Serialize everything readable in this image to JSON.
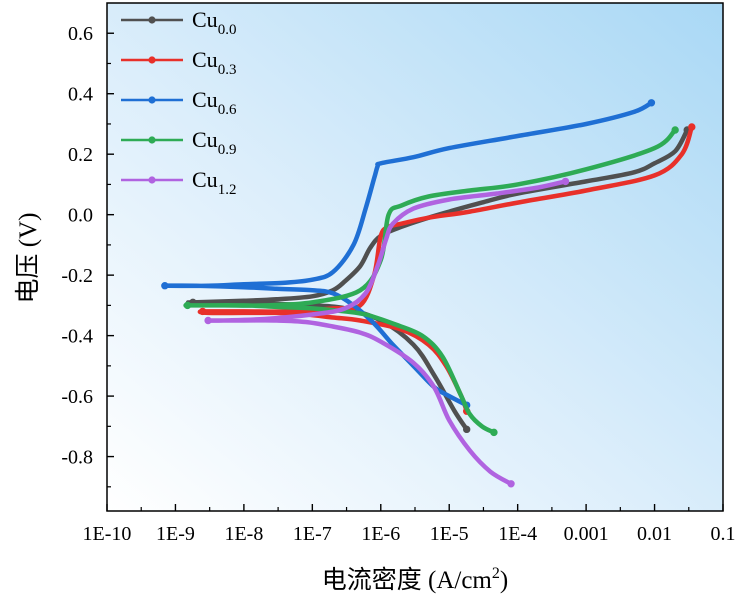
{
  "chart_data": {
    "type": "line",
    "title": "",
    "xlabel": "电流密度 (A/cm²)",
    "xlabel_main": "电流密度 (A/cm",
    "xlabel_sup": "2",
    "xlabel_close": ")",
    "ylabel": "电压 (V)",
    "x_scale": "log",
    "xlim": [
      1e-10,
      0.1
    ],
    "ylim": [
      -0.98,
      0.7
    ],
    "x_ticks": [
      1e-10,
      1e-09,
      1e-08,
      1e-07,
      1e-06,
      1e-05,
      0.0001,
      0.001,
      0.01,
      0.1
    ],
    "x_tick_labels": [
      "1E-10",
      "1E-9",
      "1E-8",
      "1E-7",
      "1E-6",
      "1E-5",
      "1E-4",
      "0.001",
      "0.01",
      "0.1"
    ],
    "y_ticks": [
      -0.8,
      -0.6,
      -0.4,
      -0.2,
      0.0,
      0.2,
      0.4,
      0.6
    ],
    "y_tick_labels": [
      "-0.8",
      "-0.6",
      "-0.4",
      "-0.2",
      "0.0",
      "0.2",
      "0.4",
      "0.6"
    ],
    "background": "gradient light-blue",
    "grid": false,
    "legend_position": "top-left",
    "series": [
      {
        "name": "Cu0.0",
        "base": "Cu",
        "sub": "0.0",
        "color": "#505050",
        "x": [
          1.8e-05,
          1.2e-05,
          6e-06,
          3e-06,
          1e-06,
          3e-07,
          1e-07,
          3e-08,
          1e-08,
          2e-09,
          1.8e-09,
          1e-08,
          3e-08,
          1e-07,
          2e-07,
          3e-07,
          5e-07,
          7e-07,
          1e-06,
          2e-06,
          5e-06,
          1e-05,
          3e-05,
          0.0001,
          0.001,
          0.005,
          0.01,
          0.02,
          0.03
        ],
        "y": [
          -0.71,
          -0.65,
          -0.53,
          -0.43,
          -0.35,
          -0.31,
          -0.3,
          -0.295,
          -0.29,
          -0.29,
          -0.29,
          -0.285,
          -0.28,
          -0.27,
          -0.25,
          -0.22,
          -0.17,
          -0.11,
          -0.07,
          -0.04,
          -0.01,
          0.01,
          0.04,
          0.07,
          0.11,
          0.14,
          0.17,
          0.21,
          0.28
        ]
      },
      {
        "name": "Cu0.3",
        "base": "Cu",
        "sub": "0.3",
        "color": "#e8302a",
        "x": [
          1.8e-05,
          1.5e-05,
          9e-06,
          5e-06,
          2e-06,
          5e-07,
          2e-07,
          8e-08,
          3e-08,
          1e-08,
          3e-09,
          2.5e-09,
          1e-08,
          5e-08,
          2e-07,
          5e-07,
          8e-07,
          1e-06,
          1.3e-06,
          2e-06,
          5e-06,
          2e-05,
          0.0001,
          0.001,
          0.01,
          0.025,
          0.035
        ],
        "y": [
          -0.65,
          -0.6,
          -0.5,
          -0.43,
          -0.38,
          -0.35,
          -0.34,
          -0.33,
          -0.325,
          -0.325,
          -0.325,
          -0.32,
          -0.32,
          -0.32,
          -0.31,
          -0.3,
          -0.2,
          -0.07,
          -0.04,
          -0.03,
          -0.01,
          0.01,
          0.04,
          0.08,
          0.13,
          0.2,
          0.29
        ]
      },
      {
        "name": "Cu0.6",
        "base": "Cu",
        "sub": "0.6",
        "color": "#1f6fd4",
        "x": [
          1.8e-05,
          1e-05,
          6e-06,
          3e-06,
          1.5e-06,
          8e-07,
          4e-07,
          2e-07,
          1e-07,
          3e-08,
          1e-08,
          2e-09,
          7e-10,
          3e-09,
          1e-08,
          4e-08,
          1e-07,
          2e-07,
          4e-07,
          6e-07,
          8e-07,
          9e-07,
          1e-06,
          3e-06,
          1e-05,
          0.0001,
          0.001,
          0.005,
          0.009
        ],
        "y": [
          -0.63,
          -0.6,
          -0.57,
          -0.5,
          -0.43,
          -0.36,
          -0.3,
          -0.26,
          -0.25,
          -0.245,
          -0.24,
          -0.235,
          -0.235,
          -0.235,
          -0.23,
          -0.225,
          -0.215,
          -0.19,
          -0.1,
          0.02,
          0.12,
          0.16,
          0.17,
          0.19,
          0.22,
          0.26,
          0.3,
          0.34,
          0.37
        ]
      },
      {
        "name": "Cu0.9",
        "base": "Cu",
        "sub": "0.9",
        "color": "#2eab55",
        "x": [
          4.5e-05,
          3e-05,
          2e-05,
          1.5e-05,
          8e-06,
          4e-06,
          1.5e-06,
          6e-07,
          3e-07,
          1e-07,
          3e-08,
          1e-08,
          2e-09,
          1.5e-09,
          5e-09,
          2e-08,
          1e-07,
          5e-07,
          1e-06,
          1.3e-06,
          2e-06,
          5e-06,
          2e-05,
          0.0001,
          0.001,
          0.01,
          0.02
        ],
        "y": [
          -0.72,
          -0.7,
          -0.66,
          -0.6,
          -0.47,
          -0.4,
          -0.36,
          -0.33,
          -0.32,
          -0.31,
          -0.305,
          -0.3,
          -0.3,
          -0.3,
          -0.3,
          -0.3,
          -0.29,
          -0.25,
          -0.15,
          0.0,
          0.03,
          0.06,
          0.08,
          0.1,
          0.15,
          0.22,
          0.28
        ]
      },
      {
        "name": "Cu1.2",
        "base": "Cu",
        "sub": "1.2",
        "color": "#b063e0",
        "x": [
          8e-05,
          4e-05,
          2e-05,
          1e-05,
          6e-06,
          3e-06,
          1e-06,
          5e-07,
          2e-07,
          8e-08,
          3e-08,
          1e-08,
          3e-09,
          5e-09,
          2e-08,
          1e-07,
          3e-07,
          6e-07,
          9e-07,
          1.2e-06,
          1.5e-06,
          3e-06,
          1e-05,
          5e-05,
          0.0002,
          0.0005
        ],
        "y": [
          -0.89,
          -0.85,
          -0.78,
          -0.68,
          -0.57,
          -0.49,
          -0.42,
          -0.39,
          -0.37,
          -0.355,
          -0.35,
          -0.35,
          -0.35,
          -0.35,
          -0.345,
          -0.33,
          -0.31,
          -0.26,
          -0.17,
          -0.08,
          -0.03,
          0.02,
          0.05,
          0.07,
          0.09,
          0.11
        ]
      }
    ]
  }
}
